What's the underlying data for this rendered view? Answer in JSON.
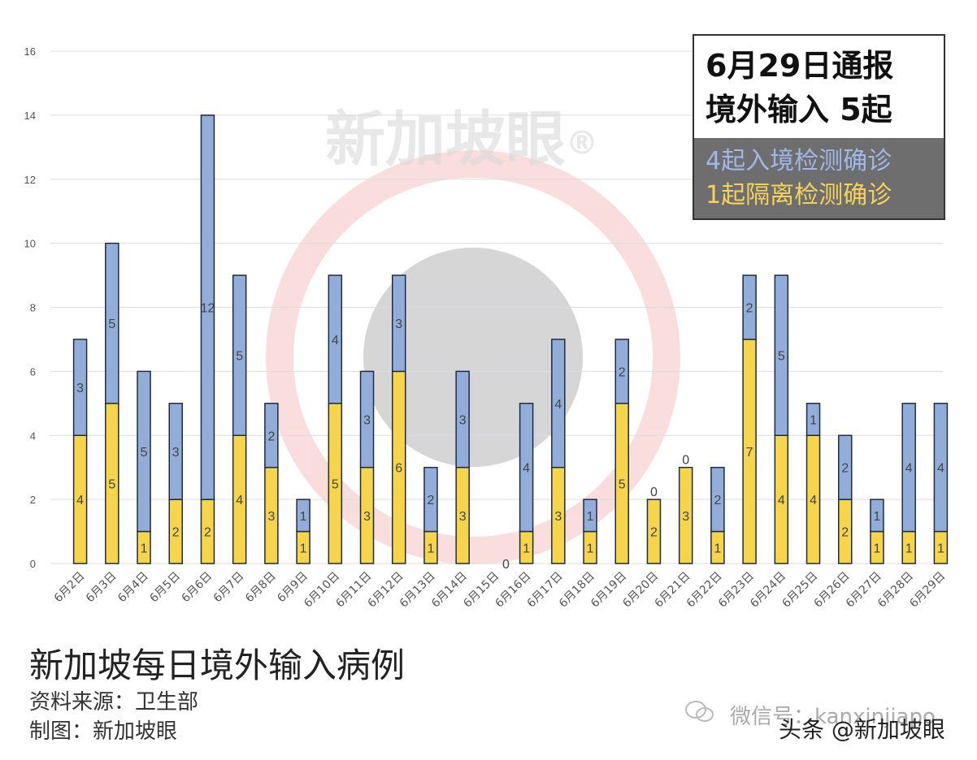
{
  "chart_data": {
    "type": "bar",
    "stacked": true,
    "categories": [
      "6月2日",
      "6月3日",
      "6月4日",
      "6月5日",
      "6月6日",
      "6月7日",
      "6月8日",
      "6月9日",
      "6月10日",
      "6月11日",
      "6月12日",
      "6月13日",
      "6月14日",
      "6月15日",
      "6月16日",
      "6月17日",
      "6月18日",
      "6月19日",
      "6月20日",
      "6月21日",
      "6月22日",
      "6月23日",
      "6月24日",
      "6月25日",
      "6月26日",
      "6月27日",
      "6月28日",
      "6月29日"
    ],
    "series": [
      {
        "color": "#f7d54a",
        "values": [
          4,
          5,
          1,
          2,
          2,
          4,
          3,
          1,
          5,
          3,
          6,
          1,
          3,
          0,
          1,
          3,
          1,
          5,
          2,
          3,
          1,
          7,
          4,
          4,
          2,
          1,
          1,
          1
        ]
      },
      {
        "color": "#93add9",
        "values": [
          3,
          5,
          5,
          3,
          12,
          5,
          2,
          1,
          4,
          3,
          3,
          2,
          3,
          0,
          4,
          4,
          1,
          2,
          0,
          0,
          2,
          2,
          5,
          1,
          2,
          1,
          4,
          4
        ]
      }
    ],
    "ylim": [
      0,
      16
    ],
    "yticks": [
      0,
      2,
      4,
      6,
      8,
      10,
      12,
      14,
      16
    ],
    "grid": true,
    "title": "新加坡每日境外输入病例",
    "xlabel": "",
    "ylabel": ""
  },
  "infobox": {
    "line1": "6月29日通报",
    "line2": "境外输入 5起",
    "sub1": "4起入境检测确诊",
    "sub2": "1起隔离检测确诊"
  },
  "footer": {
    "title": "新加坡每日境外输入病例",
    "source": "资料来源：卫生部",
    "maker": "制图：新加坡眼"
  },
  "watermark": {
    "brand": "新加坡眼",
    "registered": "®",
    "wechat": "微信号：kanxinjiapo",
    "toutiao": "头条 @新加坡眼"
  },
  "colors": {
    "yellow": "#f7d54a",
    "blue": "#93add9",
    "grid": "#dcdce4",
    "outline": "#1d2b44"
  }
}
